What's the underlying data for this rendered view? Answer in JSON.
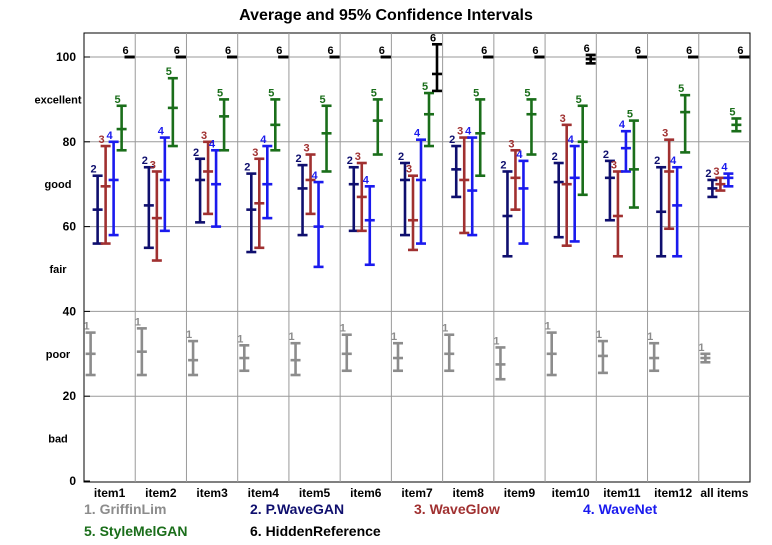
{
  "chart_data": {
    "type": "errorbar",
    "title": "Average and 95% Confidence Intervals",
    "xlabel": "",
    "ylabel": "",
    "ylim": [
      0,
      108
    ],
    "y_ticks": [
      0,
      20,
      40,
      60,
      80,
      100
    ],
    "y_category_labels": [
      {
        "label": "bad",
        "value": 10
      },
      {
        "label": "poor",
        "value": 30
      },
      {
        "label": "fair",
        "value": 50
      },
      {
        "label": "good",
        "value": 70
      },
      {
        "label": "excellent",
        "value": 90
      }
    ],
    "grid": true,
    "categories": [
      "item1",
      "item2",
      "item3",
      "item4",
      "item5",
      "item6",
      "item7",
      "item8",
      "item9",
      "item10",
      "item11",
      "item12",
      "all items"
    ],
    "series": [
      {
        "id": "1",
        "name": "GriffinLim",
        "color": "#8c8c8c",
        "mean": [
          30,
          30.5,
          28.5,
          29,
          28.5,
          30,
          29,
          30,
          27.5,
          30,
          29.5,
          29,
          29
        ],
        "low": [
          25,
          25,
          25,
          26,
          25,
          26,
          26,
          26,
          24,
          25,
          25.5,
          26,
          28
        ],
        "high": [
          35,
          36,
          33,
          32,
          32.5,
          34.5,
          32.5,
          34.5,
          31.5,
          35,
          33,
          32.5,
          30
        ]
      },
      {
        "id": "2",
        "name": "P.WaveGAN",
        "color": "#0f0f6e",
        "mean": [
          64,
          65,
          71,
          64,
          69,
          70,
          71,
          73.5,
          62.5,
          70.5,
          71.5,
          63.5,
          69
        ],
        "low": [
          56,
          55,
          61,
          54,
          58,
          59,
          58,
          67,
          53,
          57.5,
          61.5,
          53,
          67
        ],
        "high": [
          72,
          74,
          76,
          72.5,
          74.5,
          74,
          75,
          79,
          73,
          75,
          75.5,
          74,
          71
        ]
      },
      {
        "id": "3",
        "name": "WaveGlow",
        "color": "#a03030",
        "mean": [
          69.5,
          62,
          73,
          65.5,
          71,
          67,
          61.5,
          71,
          71.5,
          70,
          62.5,
          73,
          70
        ],
        "low": [
          56,
          52,
          63,
          55,
          63,
          59,
          54.5,
          58.5,
          64,
          55.5,
          53,
          59.5,
          68.5
        ],
        "high": [
          79,
          73,
          80,
          76,
          77,
          75,
          72,
          81,
          78,
          84,
          73,
          80.5,
          71.5
        ]
      },
      {
        "id": "4",
        "name": "WaveNet",
        "color": "#1a1aee",
        "mean": [
          71,
          71,
          70,
          70,
          60,
          61.5,
          71,
          68.5,
          69,
          71.5,
          78.5,
          65,
          71.5
        ],
        "low": [
          58,
          59,
          60,
          62,
          50.5,
          51,
          56,
          58,
          56,
          56.5,
          73,
          53,
          69.5
        ],
        "high": [
          80,
          81,
          78,
          79,
          70.5,
          69.5,
          80.5,
          81,
          75.5,
          79,
          82.5,
          74,
          72.5
        ]
      },
      {
        "id": "5",
        "name": "StyleMelGAN",
        "color": "#1a6e1a",
        "mean": [
          83,
          88,
          86,
          84,
          82,
          85,
          86.5,
          82,
          86.5,
          80,
          73.5,
          87,
          84
        ],
        "low": [
          78,
          79,
          78,
          78,
          73,
          77,
          79,
          72,
          77,
          67.5,
          64.5,
          77.5,
          82.5
        ],
        "high": [
          88.5,
          95,
          90,
          90,
          88.5,
          90,
          91.5,
          90,
          90,
          88.5,
          85,
          91,
          85.5
        ]
      },
      {
        "id": "6",
        "name": "HiddenReference",
        "color": "#000000",
        "mean": [
          100,
          100,
          100,
          100,
          100,
          100,
          96,
          100,
          100,
          99.5,
          100,
          100,
          100
        ],
        "low": [
          100,
          100,
          100,
          100,
          100,
          100,
          92,
          100,
          100,
          98.5,
          100,
          100,
          100
        ],
        "high": [
          100,
          100,
          100,
          100,
          100,
          100,
          103,
          100,
          100,
          100.5,
          100,
          100,
          100
        ]
      }
    ],
    "legend": [
      {
        "text": "1. GriffinLim",
        "color": "#8c8c8c"
      },
      {
        "text": "2. P.WaveGAN",
        "color": "#0f0f6e"
      },
      {
        "text": "3. WaveGlow",
        "color": "#a03030"
      },
      {
        "text": "4. WaveNet",
        "color": "#1a1aee"
      },
      {
        "text": "5. StyleMelGAN",
        "color": "#1a6e1a"
      },
      {
        "text": "6. HiddenReference",
        "color": "#000000"
      }
    ],
    "legend_position": "bottom"
  }
}
